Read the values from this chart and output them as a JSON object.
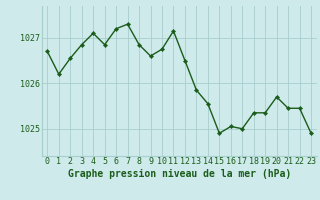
{
  "x": [
    0,
    1,
    2,
    3,
    4,
    5,
    6,
    7,
    8,
    9,
    10,
    11,
    12,
    13,
    14,
    15,
    16,
    17,
    18,
    19,
    20,
    21,
    22,
    23
  ],
  "y": [
    1026.7,
    1026.2,
    1026.55,
    1026.85,
    1027.1,
    1026.85,
    1027.2,
    1027.3,
    1026.85,
    1026.6,
    1026.75,
    1027.15,
    1026.5,
    1025.85,
    1025.55,
    1024.9,
    1025.05,
    1025.0,
    1025.35,
    1025.35,
    1025.7,
    1025.45,
    1025.45,
    1024.9
  ],
  "line_color": "#1a5c1a",
  "marker": "D",
  "marker_size": 2.2,
  "line_width": 1.0,
  "bg_color": "#ceeaea",
  "grid_color": "#a8cece",
  "xlabel": "Graphe pression niveau de la mer (hPa)",
  "xlabel_color": "#1a5c1a",
  "xlabel_fontsize": 7.0,
  "tick_color": "#1a5c1a",
  "tick_fontsize": 6.0,
  "yticks": [
    1025,
    1026,
    1027
  ],
  "ylim": [
    1024.4,
    1027.7
  ],
  "xlim": [
    -0.5,
    23.5
  ],
  "xticks": [
    0,
    1,
    2,
    3,
    4,
    5,
    6,
    7,
    8,
    9,
    10,
    11,
    12,
    13,
    14,
    15,
    16,
    17,
    18,
    19,
    20,
    21,
    22,
    23
  ]
}
